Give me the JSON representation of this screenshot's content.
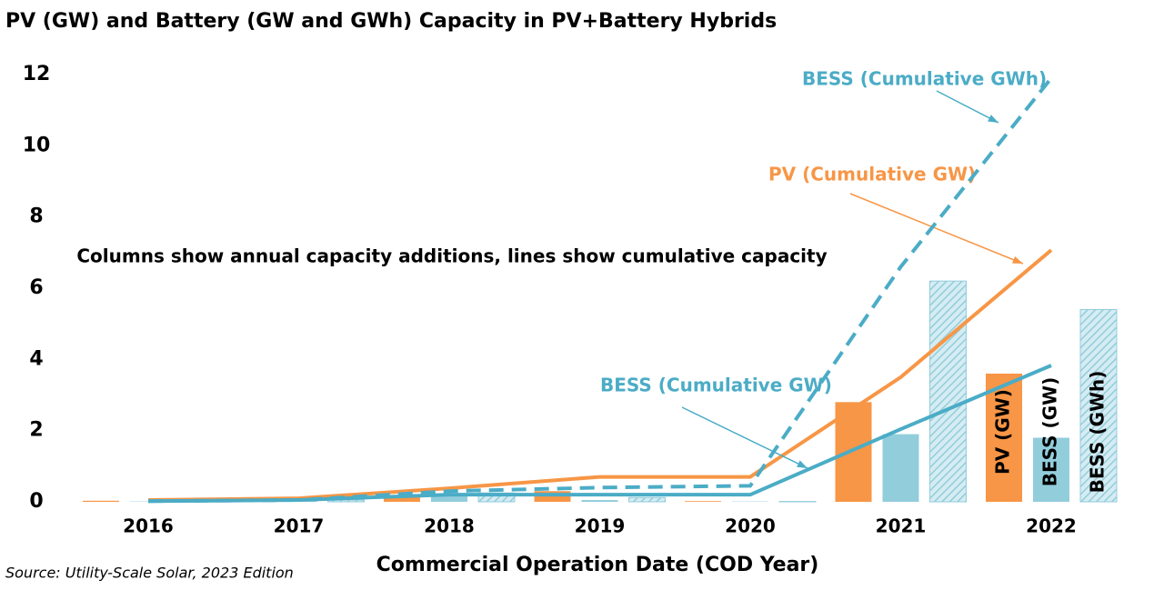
{
  "chart_data": {
    "type": "combo",
    "title": "PV (GW) and Battery (GW and GWh) Capacity in PV+Battery Hybrids",
    "note": "Columns show annual capacity additions, lines show cumulative capacity",
    "x_label": "Commercial Operation Date (COD Year)",
    "source": "Source: Utility-Scale Solar, 2023 Edition",
    "categories": [
      "2016",
      "2017",
      "2018",
      "2019",
      "2020",
      "2021",
      "2022"
    ],
    "ylim": [
      0,
      12
    ],
    "yticks": [
      0,
      2,
      4,
      6,
      8,
      10,
      12
    ],
    "series": [
      {
        "name": "PV (GW)",
        "kind": "bar",
        "color": "#f79646",
        "values": [
          0.03,
          0.02,
          0.15,
          0.3,
          0.02,
          2.8,
          3.6
        ]
      },
      {
        "name": "BESS (GW)",
        "kind": "bar",
        "color": "#92cddc",
        "values": [
          0.01,
          0.03,
          0.2,
          0.05,
          0.01,
          1.9,
          1.8
        ]
      },
      {
        "name": "BESS (GWh)",
        "kind": "bar",
        "color": "#92cddc",
        "hatch": true,
        "values": [
          0.02,
          0.05,
          0.25,
          0.12,
          0.01,
          6.2,
          5.4
        ]
      },
      {
        "name": "PV (Cumulative GW)",
        "kind": "line",
        "color": "#f79646",
        "values": [
          0.05,
          0.1,
          0.38,
          0.7,
          0.7,
          3.5,
          7.07
        ]
      },
      {
        "name": "BESS (Cumulative GW)",
        "kind": "line",
        "color": "#4bacc6",
        "values": [
          0.02,
          0.05,
          0.2,
          0.2,
          0.2,
          2.04,
          3.83
        ]
      },
      {
        "name": "BESS (Cumulative GWh)",
        "kind": "line",
        "color": "#4bacc6",
        "dash": true,
        "values": [
          0.02,
          0.05,
          0.3,
          0.4,
          0.45,
          6.6,
          11.9
        ]
      }
    ]
  }
}
